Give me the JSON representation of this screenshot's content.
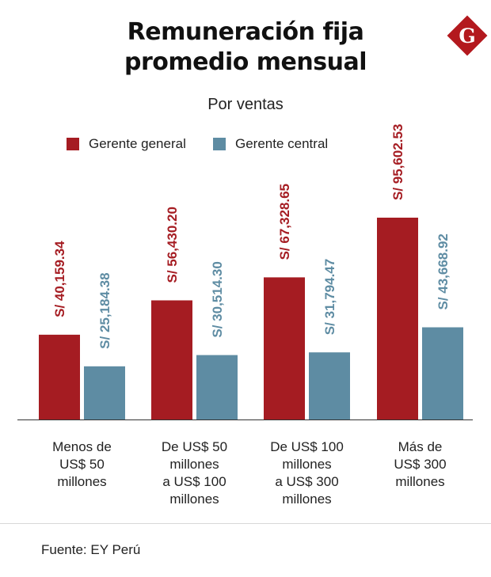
{
  "title_line1": "Remuneración fija",
  "title_line2": "promedio mensual",
  "subtitle": "Por ventas",
  "logo_letter": "G",
  "colors": {
    "gerente_general": "#a51c22",
    "gerente_central": "#5e8ca3",
    "logo_bg": "#b3191e"
  },
  "source": "Fuente: EY Perú",
  "chart_data": {
    "type": "bar",
    "title": "Remuneración fija promedio mensual",
    "subtitle": "Por ventas",
    "categories": [
      [
        "Menos de",
        "US$ 50",
        "millones"
      ],
      [
        "De US$ 50",
        "millones",
        "a US$ 100",
        "millones"
      ],
      [
        "De US$ 100",
        "millones",
        "a US$ 300",
        "millones"
      ],
      [
        "Más de",
        "US$ 300",
        "millones"
      ]
    ],
    "series": [
      {
        "name": "Gerente general",
        "values": [
          40159.34,
          56430.2,
          67328.65,
          95602.53
        ],
        "labels": [
          "S/ 40,159.34",
          "S/ 56,430.20",
          "S/ 67,328.65",
          "S/ 95,602.53"
        ]
      },
      {
        "name": "Gerente central",
        "values": [
          25184.38,
          30514.3,
          31794.47,
          43668.92
        ],
        "labels": [
          "S/ 25,184.38",
          "S/ 30,514.30",
          "S/ 31,794.47",
          "S/ 43,668.92"
        ]
      }
    ],
    "ylim": [
      0,
      100000
    ],
    "legend_position": "top"
  }
}
